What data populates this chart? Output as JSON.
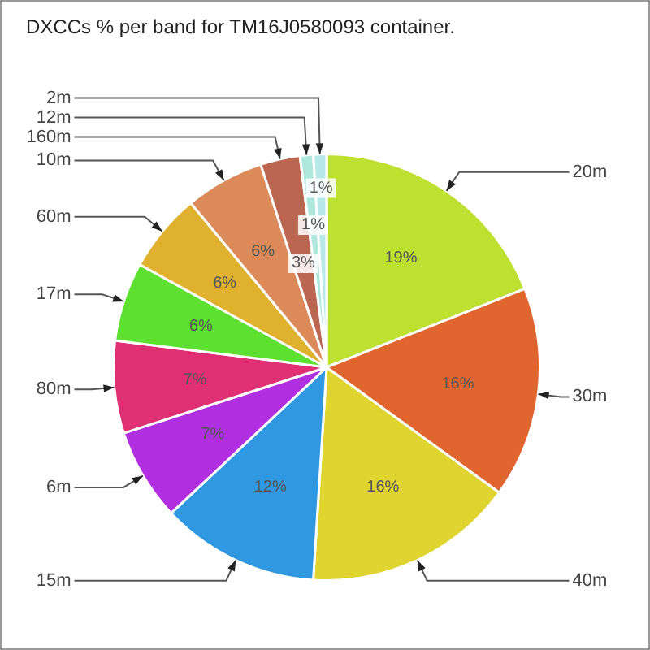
{
  "chart_data": {
    "type": "pie",
    "title": "DXCCs % per band for TM16J0580093 container.",
    "categories": [
      "20m",
      "30m",
      "40m",
      "15m",
      "6m",
      "80m",
      "17m",
      "60m",
      "10m",
      "160m",
      "12m",
      "2m"
    ],
    "values": [
      19,
      16,
      16,
      12,
      7,
      7,
      6,
      6,
      6,
      3,
      1,
      1
    ],
    "value_labels": [
      "19%",
      "16%",
      "16%",
      "12%",
      "7%",
      "7%",
      "6%",
      "6%",
      "6%",
      "3%",
      "1%",
      "1%"
    ],
    "colors": [
      "#bde031",
      "#e0652f",
      "#e0d530",
      "#2f98e0",
      "#b02fe0",
      "#e02f72",
      "#5de02f",
      "#e0b02f",
      "#dd8a5a",
      "#bb6650",
      "#aee8dc",
      "#b8e8e8"
    ],
    "legend": false
  }
}
